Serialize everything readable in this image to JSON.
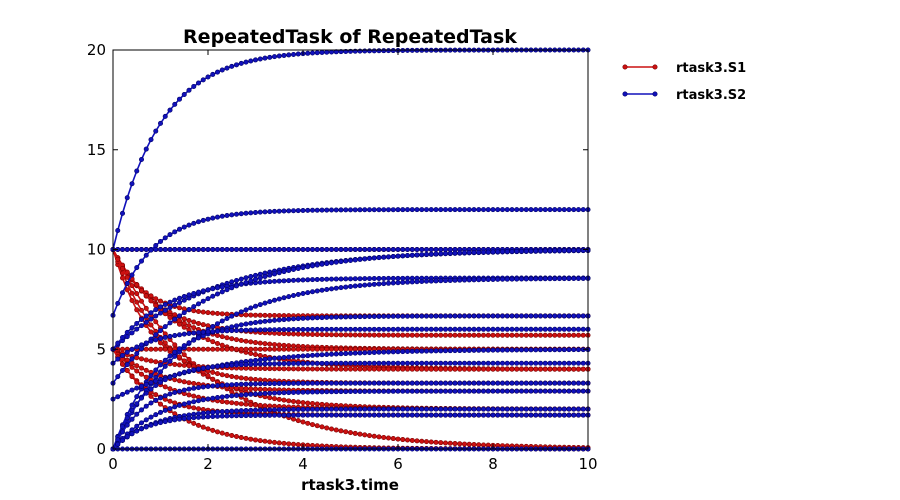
{
  "chart_data": {
    "type": "line",
    "title": "RepeatedTask of RepeatedTask",
    "xlabel": "rtask3.time",
    "ylabel": "",
    "xlim": [
      0,
      10
    ],
    "ylim": [
      0,
      20
    ],
    "xticks": [
      "0",
      "2",
      "4",
      "6",
      "8",
      "10"
    ],
    "yticks": [
      "0",
      "5",
      "10",
      "15",
      "20"
    ],
    "legend": {
      "position": "outside-right"
    },
    "grid": false,
    "x": [
      0,
      0.1,
      0.2,
      0.3,
      0.4,
      0.5,
      0.6,
      0.7,
      0.8,
      0.9,
      1.0,
      1.1,
      1.2,
      1.3,
      1.4,
      1.5,
      1.6,
      1.7,
      1.8,
      1.9,
      2.0,
      2.1,
      2.2,
      2.3,
      2.4,
      2.5,
      2.6,
      2.7,
      2.8,
      2.9,
      3.0,
      3.1,
      3.2,
      3.3,
      3.4,
      3.5,
      3.6,
      3.7,
      3.8,
      3.9,
      4.0,
      4.1,
      4.2,
      4.3,
      4.4,
      4.5,
      4.6,
      4.7,
      4.8,
      4.9,
      5.0,
      5.1,
      5.2,
      5.3,
      5.4,
      5.5,
      5.6,
      5.7,
      5.8,
      5.9,
      6.0,
      6.1,
      6.2,
      6.3,
      6.4,
      6.5,
      6.6,
      6.7,
      6.8,
      6.9,
      7.0,
      7.1,
      7.2,
      7.3,
      7.4,
      7.5,
      7.6,
      7.7,
      7.8,
      7.9,
      8.0,
      8.1,
      8.2,
      8.3,
      8.4,
      8.5,
      8.6,
      8.7,
      8.8,
      8.9,
      9.0,
      9.1,
      9.2,
      9.3,
      9.4,
      9.5,
      9.6,
      9.7,
      9.8,
      9.9,
      10.0
    ],
    "colors": {
      "S1": "#cc1111",
      "S2": "#1111bb",
      "S1_edge": "#7a0000",
      "S2_edge": "#000066"
    },
    "series": [
      {
        "name": "rtask3.S1",
        "color": "#cc1111",
        "y0": 10,
        "yinf": 10,
        "k": 1.0
      },
      {
        "name": "rtask3.S1",
        "color": "#cc1111",
        "y0": 10,
        "yinf": 6.67,
        "k": 1.5
      },
      {
        "name": "rtask3.S1",
        "color": "#cc1111",
        "y0": 10,
        "yinf": 5.7,
        "k": 1.1
      },
      {
        "name": "rtask3.S1",
        "color": "#cc1111",
        "y0": 10,
        "yinf": 5.0,
        "k": 0.9
      },
      {
        "name": "rtask3.S1",
        "color": "#cc1111",
        "y0": 10,
        "yinf": 4.0,
        "k": 0.7
      },
      {
        "name": "rtask3.S1",
        "color": "#cc1111",
        "y0": 10,
        "yinf": 3.3,
        "k": 1.2
      },
      {
        "name": "rtask3.S1",
        "color": "#cc1111",
        "y0": 10,
        "yinf": 2.0,
        "k": 0.8
      },
      {
        "name": "rtask3.S1",
        "color": "#cc1111",
        "y0": 10,
        "yinf": 0.0,
        "k": 0.5
      },
      {
        "name": "rtask3.S1",
        "color": "#cc1111",
        "y0": 5,
        "yinf": 5.0,
        "k": 1.0
      },
      {
        "name": "rtask3.S1",
        "color": "#cc1111",
        "y0": 5,
        "yinf": 4.0,
        "k": 1.1
      },
      {
        "name": "rtask3.S1",
        "color": "#cc1111",
        "y0": 5,
        "yinf": 2.9,
        "k": 1.0
      },
      {
        "name": "rtask3.S1",
        "color": "#cc1111",
        "y0": 5,
        "yinf": 2.0,
        "k": 0.9
      },
      {
        "name": "rtask3.S1",
        "color": "#cc1111",
        "y0": 5,
        "yinf": 1.7,
        "k": 1.3
      },
      {
        "name": "rtask3.S1",
        "color": "#cc1111",
        "y0": 5,
        "yinf": 0.0,
        "k": 0.8
      },
      {
        "name": "rtask3.S2",
        "color": "#1111bb",
        "y0": 10,
        "yinf": 20,
        "k": 1.0
      },
      {
        "name": "rtask3.S2",
        "color": "#1111bb",
        "y0": 10,
        "yinf": 10,
        "k": 1.0
      },
      {
        "name": "rtask3.S2",
        "color": "#1111bb",
        "y0": 6.7,
        "yinf": 12,
        "k": 1.2
      },
      {
        "name": "rtask3.S2",
        "color": "#1111bb",
        "y0": 5.0,
        "yinf": 10,
        "k": 0.45
      },
      {
        "name": "rtask3.S2",
        "color": "#1111bb",
        "y0": 5.0,
        "yinf": 8.57,
        "k": 0.9
      },
      {
        "name": "rtask3.S2",
        "color": "#1111bb",
        "y0": 3.3,
        "yinf": 10,
        "k": 0.5
      },
      {
        "name": "rtask3.S2",
        "color": "#1111bb",
        "y0": 0,
        "yinf": 8.57,
        "k": 0.6
      },
      {
        "name": "rtask3.S2",
        "color": "#1111bb",
        "y0": 0,
        "yinf": 6.67,
        "k": 1.0
      },
      {
        "name": "rtask3.S2",
        "color": "#1111bb",
        "y0": 4.3,
        "yinf": 6.0,
        "k": 1.3
      },
      {
        "name": "rtask3.S2",
        "color": "#1111bb",
        "y0": 2.5,
        "yinf": 5.0,
        "k": 0.5
      },
      {
        "name": "rtask3.S2",
        "color": "#1111bb",
        "y0": 0,
        "yinf": 4.3,
        "k": 1.5
      },
      {
        "name": "rtask3.S2",
        "color": "#1111bb",
        "y0": 0,
        "yinf": 3.3,
        "k": 1.5
      },
      {
        "name": "rtask3.S2",
        "color": "#1111bb",
        "y0": 0,
        "yinf": 2.9,
        "k": 1.0
      },
      {
        "name": "rtask3.S2",
        "color": "#1111bb",
        "y0": 0,
        "yinf": 2.0,
        "k": 1.2
      },
      {
        "name": "rtask3.S2",
        "color": "#1111bb",
        "y0": 0,
        "yinf": 1.7,
        "k": 1.5
      },
      {
        "name": "rtask3.S2",
        "color": "#1111bb",
        "y0": 0,
        "yinf": 0.0,
        "k": 1.0
      }
    ],
    "legend_entries": [
      {
        "label": "rtask3.S1",
        "color": "#cc1111"
      },
      {
        "label": "rtask3.S2",
        "color": "#1111bb"
      }
    ]
  }
}
